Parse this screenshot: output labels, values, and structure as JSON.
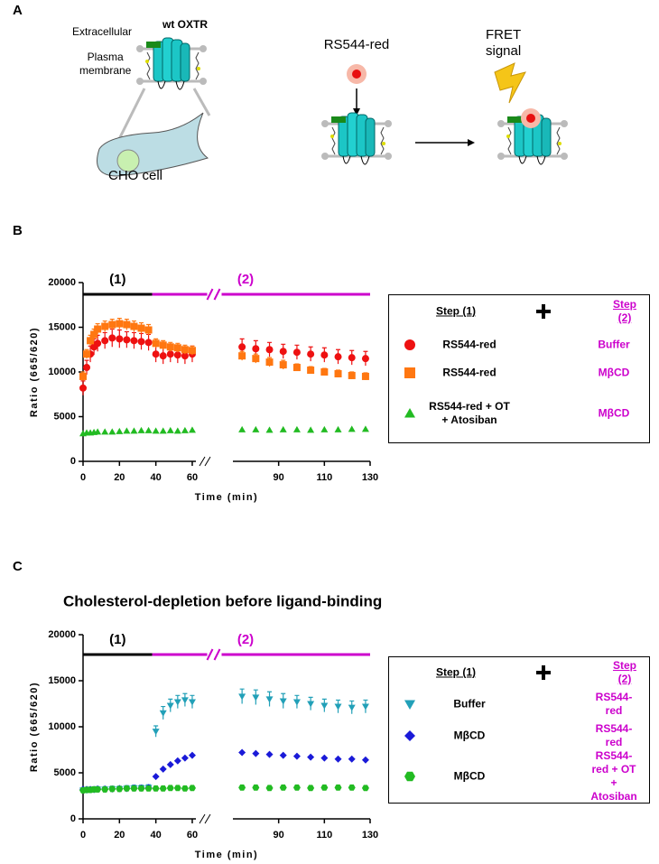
{
  "panel_labels": [
    "A",
    "B",
    "C"
  ],
  "diagram": {
    "receptor": "wt OXTR",
    "extracellular": "Extracellular",
    "membrane": "Plasma\nmembrane",
    "cell": "CHO cell",
    "ligand": "RS544-red",
    "fret": "FRET\nsignal"
  },
  "chart_data": [
    {
      "type": "scatter",
      "ylabel": "Ratio (665/620)",
      "xlabel": "Time (min)",
      "xlim": [
        0,
        130
      ],
      "xbreak": [
        62,
        70
      ],
      "xticks": [
        0,
        20,
        40,
        60,
        90,
        110,
        130
      ],
      "ylim": [
        0,
        20000
      ],
      "yticks": [
        0,
        5000,
        10000,
        15000,
        20000
      ],
      "phases": [
        {
          "label": "(1)",
          "range": [
            0,
            38
          ],
          "color": "#000000"
        },
        {
          "label": "(2)",
          "range": [
            38,
            130
          ],
          "color": "#cc00cc"
        }
      ],
      "legend_header": [
        "Step (1)",
        "Step (2)"
      ],
      "x": [
        0,
        2,
        4,
        6,
        8,
        12,
        16,
        20,
        24,
        28,
        32,
        36,
        40,
        44,
        48,
        52,
        56,
        60,
        74,
        80,
        86,
        92,
        98,
        104,
        110,
        116,
        122,
        128
      ],
      "series": [
        {
          "name": "RS544-red",
          "step2": "Buffer",
          "color": "#ee1111",
          "marker": "circle",
          "values": [
            8200,
            10500,
            12000,
            12800,
            13200,
            13500,
            13800,
            13700,
            13600,
            13500,
            13400,
            13300,
            12000,
            11800,
            12000,
            11900,
            11800,
            12000,
            12800,
            12600,
            12500,
            12300,
            12200,
            12000,
            11900,
            11700,
            11600,
            11500
          ],
          "errors": [
            800,
            800,
            900,
            900,
            900,
            900,
            1000,
            1000,
            900,
            900,
            900,
            900,
            900,
            900,
            900,
            900,
            900,
            900,
            900,
            900,
            800,
            800,
            800,
            800,
            800,
            800,
            800,
            800
          ]
        },
        {
          "name": "RS544-red",
          "step2": "MβCD",
          "color": "#ff7711",
          "marker": "square",
          "values": [
            9500,
            12000,
            13500,
            14200,
            14800,
            15100,
            15300,
            15400,
            15300,
            15100,
            14900,
            14700,
            13200,
            13000,
            12800,
            12700,
            12500,
            12400,
            11800,
            11500,
            11100,
            10800,
            10500,
            10200,
            10000,
            9800,
            9600,
            9500
          ],
          "errors": [
            500,
            500,
            600,
            600,
            600,
            600,
            600,
            600,
            600,
            600,
            600,
            600,
            500,
            500,
            500,
            500,
            500,
            500,
            500,
            500,
            500,
            500,
            400,
            400,
            400,
            400,
            400,
            400
          ]
        },
        {
          "name": "RS544-red + OT\n+ Atosiban",
          "step2": "MβCD",
          "color": "#22bb22",
          "marker": "triangle-up",
          "values": [
            3100,
            3200,
            3200,
            3250,
            3300,
            3300,
            3300,
            3350,
            3400,
            3400,
            3450,
            3450,
            3400,
            3400,
            3450,
            3400,
            3450,
            3500,
            3550,
            3550,
            3500,
            3550,
            3550,
            3500,
            3550,
            3550,
            3600,
            3600
          ]
        }
      ]
    },
    {
      "type": "scatter",
      "title": "Cholesterol-depletion before ligand-binding",
      "ylabel": "Ratio (665/620)",
      "xlabel": "Time (min)",
      "xlim": [
        0,
        130
      ],
      "xbreak": [
        62,
        70
      ],
      "xticks": [
        0,
        20,
        40,
        60,
        90,
        110,
        130
      ],
      "ylim": [
        0,
        20000
      ],
      "yticks": [
        0,
        5000,
        10000,
        15000,
        20000
      ],
      "phases": [
        {
          "label": "(1)",
          "range": [
            0,
            38
          ],
          "color": "#000000"
        },
        {
          "label": "(2)",
          "range": [
            38,
            130
          ],
          "color": "#cc00cc"
        }
      ],
      "legend_header": [
        "Step (1)",
        "Step (2)"
      ],
      "x": [
        0,
        2,
        4,
        6,
        8,
        12,
        16,
        20,
        24,
        28,
        32,
        36,
        40,
        44,
        48,
        52,
        56,
        60,
        74,
        80,
        86,
        92,
        98,
        104,
        110,
        116,
        122,
        128
      ],
      "series": [
        {
          "name": "Buffer",
          "step2": "RS544-red",
          "color": "#22a0b8",
          "marker": "triangle-down",
          "values": [
            3100,
            3100,
            3150,
            3150,
            3200,
            3200,
            3250,
            3250,
            3300,
            3350,
            3350,
            3400,
            9500,
            11500,
            12300,
            12700,
            12900,
            12700,
            13300,
            13200,
            13000,
            12800,
            12700,
            12500,
            12300,
            12200,
            12100,
            12200
          ],
          "errors": [
            300,
            300,
            300,
            300,
            300,
            300,
            300,
            300,
            300,
            300,
            300,
            300,
            600,
            700,
            700,
            700,
            700,
            700,
            800,
            800,
            800,
            800,
            700,
            700,
            700,
            700,
            700,
            700
          ]
        },
        {
          "name": "MβCD",
          "step2": "RS544-red",
          "color": "#1a1ad8",
          "marker": "diamond",
          "values": [
            3200,
            3200,
            3200,
            3200,
            3250,
            3250,
            3250,
            3300,
            3300,
            3350,
            3350,
            3400,
            4600,
            5400,
            5900,
            6300,
            6600,
            6900,
            7200,
            7100,
            7000,
            6900,
            6800,
            6700,
            6600,
            6500,
            6500,
            6400
          ]
        },
        {
          "name": "MβCD",
          "step2": "RS544-red + OT\n+ Atosiban",
          "color": "#22bb22",
          "marker": "hexagon",
          "values": [
            3100,
            3150,
            3150,
            3200,
            3200,
            3200,
            3250,
            3250,
            3300,
            3300,
            3300,
            3300,
            3300,
            3300,
            3350,
            3350,
            3300,
            3350,
            3400,
            3400,
            3350,
            3400,
            3400,
            3350,
            3400,
            3400,
            3400,
            3350
          ]
        }
      ]
    }
  ]
}
